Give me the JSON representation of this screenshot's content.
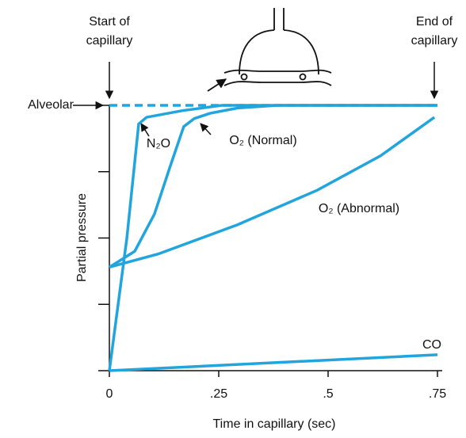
{
  "chart_data": {
    "type": "line",
    "xlabel": "Time in capillary (sec)",
    "ylabel": "Partial pressure",
    "annotations": [
      [
        "Start of",
        "capillary"
      ],
      [
        "End of",
        "capillary"
      ]
    ],
    "xlim": [
      0,
      0.75
    ],
    "xticks": [
      0,
      {
        "value": 0.25,
        "label": ".25"
      },
      {
        "value": 0.5,
        "label": ".5"
      },
      {
        "value": 0.75,
        "label": ".75"
      }
    ],
    "ylim": [
      0,
      100
    ],
    "yticks": [
      0,
      25,
      50,
      75,
      100
    ],
    "series": [
      {
        "name": "Alveolar",
        "color": "#22a5dd",
        "dashed": true,
        "x": [
          0,
          0.75
        ],
        "values": [
          100,
          100
        ]
      },
      {
        "name": "N₂O",
        "color": "#22a5dd",
        "x": [
          0,
          0.04,
          0.067,
          0.085,
          0.167,
          0.257,
          0.75
        ],
        "values": [
          0,
          50,
          93,
          95.5,
          98,
          100,
          100
        ]
      },
      {
        "name": "O₂ (Normal)",
        "color": "#22a5dd",
        "x": [
          0,
          0.058,
          0.103,
          0.139,
          0.17,
          0.194,
          0.23,
          0.293,
          0.384,
          0.75
        ],
        "values": [
          39,
          45,
          59,
          77,
          92,
          95,
          97,
          99,
          100,
          100
        ]
      },
      {
        "name": "O₂ (Abnormal)",
        "color": "#22a5dd",
        "x": [
          0,
          0.112,
          0.293,
          0.475,
          0.62,
          0.743
        ],
        "values": [
          39,
          44,
          55,
          68,
          81,
          95.5
        ]
      },
      {
        "name": "CO",
        "color": "#22a5dd",
        "x": [
          0,
          0.75
        ],
        "values": [
          0,
          6
        ]
      }
    ]
  }
}
